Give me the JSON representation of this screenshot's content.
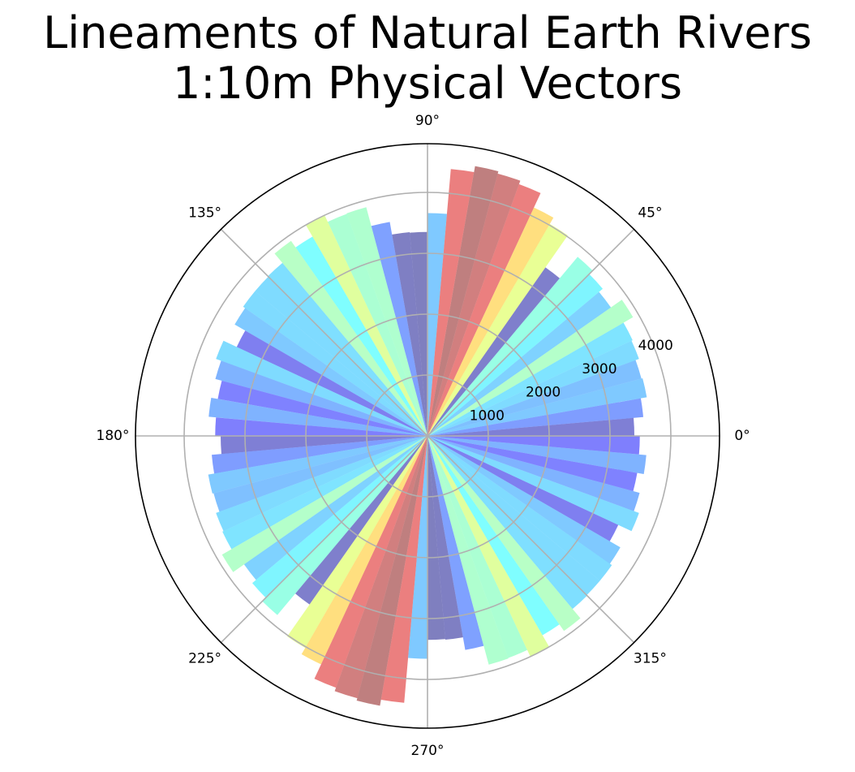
{
  "chart_data": {
    "type": "bar",
    "projection": "polar",
    "title_lines": [
      "Lineaments of Natural Earth Rivers",
      "1:10m Physical Vectors"
    ],
    "xlabel": "",
    "ylabel": "",
    "rlim": [
      0,
      4800
    ],
    "angle_ticks": [
      "0°",
      "45°",
      "90°",
      "135°",
      "180°",
      "225°",
      "270°",
      "315°"
    ],
    "angle_tick_values_deg": [
      0,
      45,
      90,
      135,
      180,
      225,
      270,
      315
    ],
    "radial_ticks": [
      1000,
      2000,
      3000,
      4000
    ],
    "radial_tick_labels": [
      "1000",
      "2000",
      "3000",
      "4000"
    ],
    "grid": true,
    "bin_width_deg": 5,
    "colormap": "jet",
    "bar_alpha": 0.5,
    "bin_centers_deg": [
      2.5,
      7.5,
      12.5,
      17.5,
      22.5,
      27.5,
      32.5,
      37.5,
      42.5,
      47.5,
      52.5,
      57.5,
      62.5,
      67.5,
      72.5,
      77.5,
      82.5,
      87.5,
      92.5,
      97.5,
      102.5,
      107.5,
      112.5,
      117.5,
      122.5,
      127.5,
      132.5,
      137.5,
      142.5,
      147.5,
      152.5,
      157.5,
      162.5,
      167.5,
      172.5,
      177.5
    ],
    "values": [
      3400,
      3560,
      3660,
      3640,
      3700,
      3720,
      3900,
      3680,
      3760,
      3840,
      3380,
      4020,
      4140,
      4400,
      4460,
      4500,
      4400,
      3660,
      3350,
      3360,
      3570,
      3890,
      3880,
      4000,
      3780,
      3910,
      3710,
      3700,
      3700,
      3660,
      3460,
      3700,
      3610,
      3500,
      3610,
      3490
    ],
    "mirrored": true,
    "mirrored_note": "Each bin is repeated at angle + 180° with the same value."
  }
}
